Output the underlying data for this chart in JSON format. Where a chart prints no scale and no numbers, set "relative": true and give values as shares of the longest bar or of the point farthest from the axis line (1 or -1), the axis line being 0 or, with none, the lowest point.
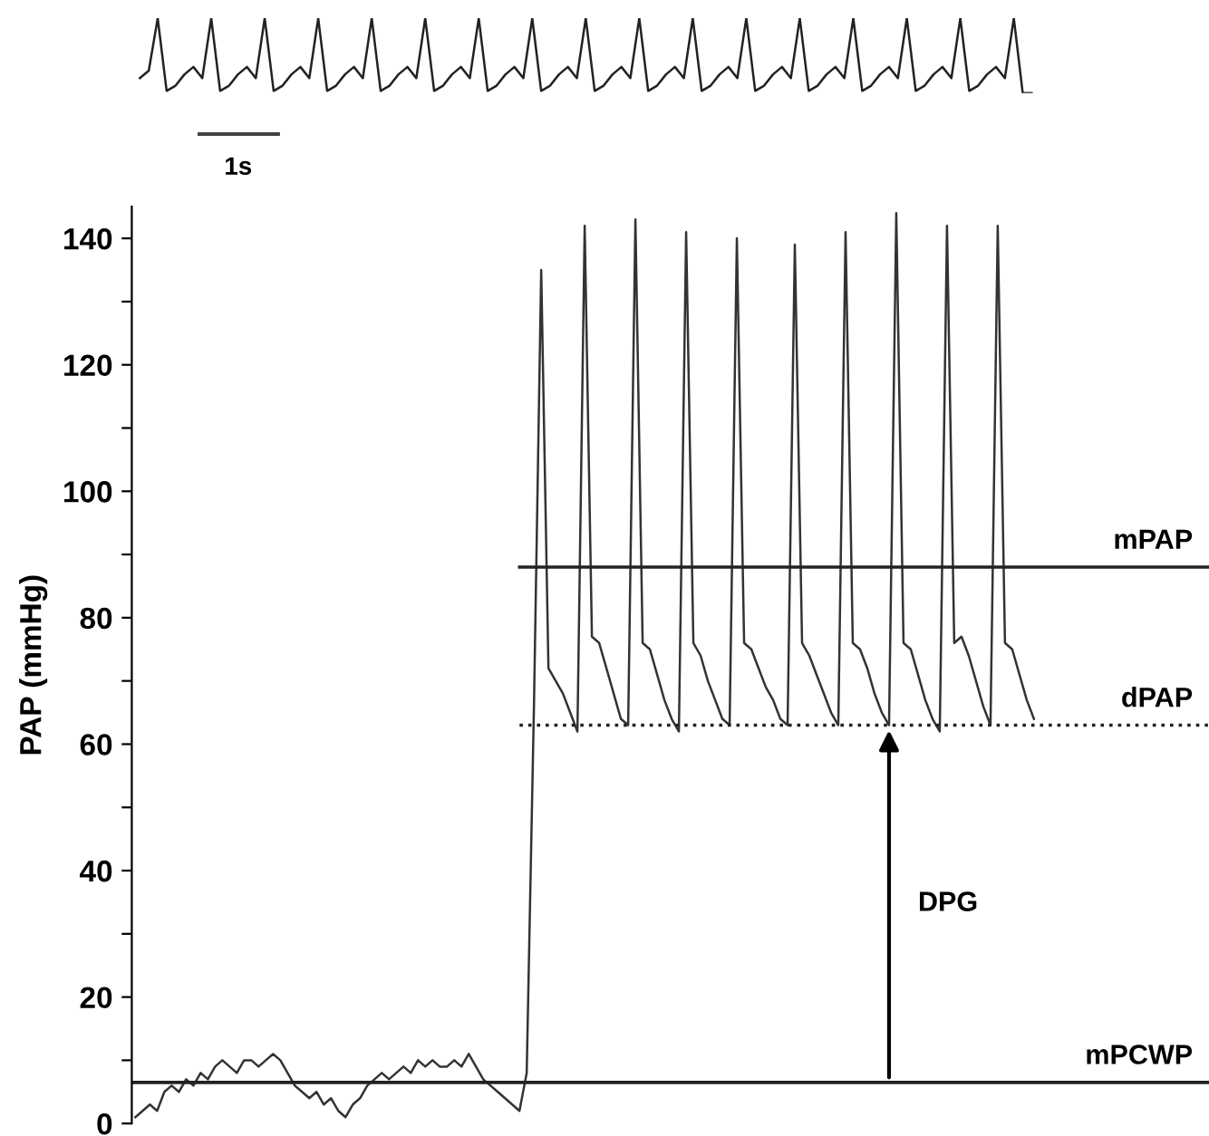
{
  "chart_data": [
    {
      "type": "line",
      "relative": true,
      "tick_labels": false,
      "annotations": [
        "1s"
      ],
      "categories": [
        null,
        null,
        null,
        null,
        null,
        null,
        null,
        null,
        null,
        null,
        null,
        null,
        null,
        null,
        null,
        null,
        null,
        null,
        null,
        null,
        null,
        null,
        null,
        null,
        null,
        null,
        null,
        null,
        null,
        null,
        null,
        null,
        null,
        null,
        null,
        null,
        null,
        null,
        null,
        null,
        null,
        null,
        null,
        null,
        null,
        null,
        null,
        null,
        null,
        null,
        null,
        null,
        null,
        null,
        null,
        null,
        null,
        null,
        null,
        null,
        null,
        null,
        null,
        null,
        null,
        null,
        null,
        null,
        null,
        null,
        null,
        null,
        null,
        null,
        null,
        null,
        null,
        null,
        null,
        null,
        null,
        null,
        null,
        null,
        null,
        null,
        null,
        null,
        null,
        null,
        null,
        null,
        null,
        null,
        null,
        null,
        null,
        null,
        null,
        null,
        null
      ],
      "series": [
        {
          "color": "#222222",
          "values": [
            0.2,
            0.3,
            1,
            0.03,
            0.1,
            0.25,
            0.35,
            0.2,
            1,
            0.03,
            0.1,
            0.25,
            0.35,
            0.2,
            1,
            0.03,
            0.1,
            0.25,
            0.35,
            0.2,
            1,
            0.03,
            0.1,
            0.25,
            0.35,
            0.2,
            1,
            0.03,
            0.1,
            0.25,
            0.35,
            0.2,
            1,
            0.03,
            0.1,
            0.25,
            0.35,
            0.2,
            1,
            0.03,
            0.1,
            0.25,
            0.35,
            0.2,
            1,
            0.03,
            0.1,
            0.25,
            0.35,
            0.2,
            1,
            0.03,
            0.1,
            0.25,
            0.35,
            0.2,
            1,
            0.03,
            0.1,
            0.25,
            0.35,
            0.2,
            1,
            0.03,
            0.1,
            0.25,
            0.35,
            0.2,
            1,
            0.03,
            0.1,
            0.25,
            0.35,
            0.2,
            1,
            0.03,
            0.1,
            0.25,
            0.35,
            0.2,
            1,
            0.03,
            0.1,
            0.25,
            0.35,
            0.2,
            1,
            0.03,
            0.1,
            0.25,
            0.35,
            0.2,
            1,
            0.03,
            0.1,
            0.25,
            0.35,
            0.2,
            1,
            0,
            0
          ]
        }
      ]
    },
    {
      "type": "line",
      "ylabel": "PAP (mmHg)",
      "tick_labels": "y",
      "grid": false,
      "annotations": [
        "DPG"
      ],
      "ylim": [
        0,
        145
      ],
      "yticks": [
        0,
        {
          "value": 10,
          "label": null
        },
        20,
        {
          "value": 30,
          "label": null
        },
        40,
        {
          "value": 50,
          "label": null
        },
        60,
        {
          "value": 70,
          "label": null
        },
        80,
        {
          "value": 90,
          "label": null
        },
        100,
        {
          "value": 110,
          "label": null
        },
        120,
        {
          "value": 130,
          "label": null
        },
        140
      ],
      "categories": [
        null,
        null,
        null,
        null,
        null,
        null,
        null,
        null,
        null,
        null,
        null,
        null,
        null,
        null,
        null,
        null,
        null,
        null,
        null,
        null,
        null,
        null,
        null,
        null,
        null,
        null,
        null,
        null,
        null,
        null,
        null,
        null,
        null,
        null,
        null,
        null,
        null,
        null,
        null,
        null,
        null,
        null,
        null,
        null,
        null,
        null,
        null,
        null,
        null,
        null,
        null,
        null,
        null,
        null,
        null,
        null,
        null,
        null,
        null,
        null,
        null,
        null,
        null,
        null,
        null,
        null,
        null,
        null,
        null,
        null,
        null,
        null,
        null,
        null,
        null,
        null,
        null,
        null,
        null,
        null,
        null,
        null,
        null,
        null,
        null,
        null,
        null,
        null,
        null,
        null,
        null,
        null,
        null,
        null,
        null,
        null,
        null,
        null,
        null,
        null,
        null,
        null,
        null,
        null,
        null,
        null,
        null,
        null,
        null,
        null,
        null,
        null,
        null,
        null,
        null,
        null,
        null,
        null,
        null,
        null,
        null,
        null,
        null,
        null,
        null
      ],
      "series": [
        {
          "color": "#333333",
          "values": [
            1,
            2,
            3,
            2,
            5,
            6,
            5,
            7,
            6,
            8,
            7,
            9,
            10,
            9,
            8,
            10,
            10,
            9,
            10,
            11,
            10,
            8,
            6,
            5,
            4,
            5,
            3,
            4,
            2,
            1,
            3,
            4,
            6,
            7,
            8,
            7,
            8,
            9,
            8,
            10,
            9,
            10,
            9,
            9,
            10,
            9,
            11,
            9,
            7,
            6,
            5,
            4,
            3,
            2,
            8,
            66,
            135,
            72,
            70,
            68,
            65,
            62,
            142,
            77,
            76,
            72,
            68,
            64,
            63,
            143,
            76,
            75,
            71,
            67,
            64,
            62,
            141,
            76,
            74,
            70,
            67,
            64,
            63,
            140,
            76,
            75,
            72,
            69,
            67,
            64,
            63,
            139,
            76,
            74,
            71,
            68,
            65,
            63,
            141,
            76,
            75,
            72,
            68,
            65,
            63,
            144,
            76,
            75,
            71,
            67,
            64,
            62,
            142,
            76,
            77,
            74,
            70,
            66,
            63,
            142,
            76,
            75,
            71,
            67,
            64
          ]
        }
      ],
      "ref_lines": [
        {
          "axis": "y",
          "value": 6.5,
          "label": "mPCWP",
          "color": "#222222",
          "line_style": "solid"
        },
        {
          "axis": "y",
          "value": 88,
          "label": "mPAP",
          "color": "#222222",
          "line_style": "solid"
        },
        {
          "axis": "y",
          "value": 63,
          "label": "dPAP",
          "color": "#222222",
          "line_style": "dotted"
        }
      ]
    }
  ]
}
